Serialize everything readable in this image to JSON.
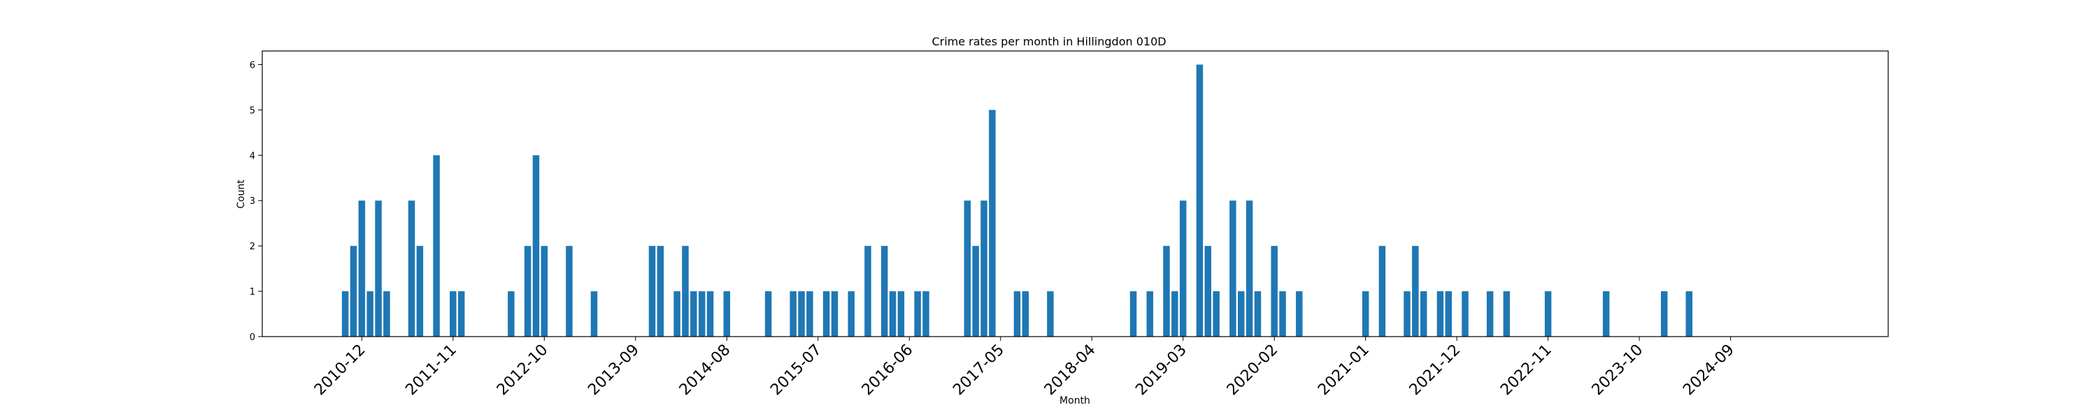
{
  "chart_data": {
    "type": "bar",
    "title": "Crime rates per month in Hillingdon 010D",
    "xlabel": "Month",
    "ylabel": "Count",
    "ylim": [
      0,
      6.3
    ],
    "yticks": [
      0,
      1,
      2,
      3,
      4,
      5,
      6
    ],
    "xlim": [
      "2009-12",
      "2026-04"
    ],
    "xticks": [
      "2010-12",
      "2011-11",
      "2012-10",
      "2013-09",
      "2014-08",
      "2015-07",
      "2016-06",
      "2017-05",
      "2018-04",
      "2019-03",
      "2020-02",
      "2021-01",
      "2021-12",
      "2022-11",
      "2023-10",
      "2024-09"
    ],
    "grid": false,
    "bar_color": "#1f77b4",
    "x": [
      "2010-10",
      "2010-11",
      "2010-12",
      "2011-01",
      "2011-02",
      "2011-03",
      "2011-06",
      "2011-07",
      "2011-09",
      "2011-11",
      "2011-12",
      "2012-06",
      "2012-08",
      "2012-09",
      "2012-10",
      "2013-01",
      "2013-04",
      "2013-11",
      "2013-12",
      "2014-02",
      "2014-03",
      "2014-04",
      "2014-05",
      "2014-06",
      "2014-08",
      "2015-01",
      "2015-04",
      "2015-05",
      "2015-06",
      "2015-08",
      "2015-09",
      "2015-11",
      "2016-01",
      "2016-03",
      "2016-04",
      "2016-05",
      "2016-07",
      "2016-08",
      "2017-01",
      "2017-02",
      "2017-03",
      "2017-04",
      "2017-07",
      "2017-08",
      "2017-11",
      "2018-09",
      "2018-11",
      "2019-01",
      "2019-02",
      "2019-03",
      "2019-05",
      "2019-06",
      "2019-07",
      "2019-09",
      "2019-10",
      "2019-11",
      "2019-12",
      "2020-02",
      "2020-03",
      "2020-05",
      "2021-01",
      "2021-03",
      "2021-06",
      "2021-07",
      "2021-08",
      "2021-10",
      "2021-11",
      "2022-01",
      "2022-04",
      "2022-06",
      "2022-11",
      "2023-06",
      "2024-01",
      "2024-04"
    ],
    "values": [
      1,
      2,
      3,
      1,
      3,
      1,
      3,
      2,
      4,
      1,
      1,
      1,
      2,
      4,
      2,
      2,
      1,
      2,
      2,
      1,
      2,
      1,
      1,
      1,
      1,
      1,
      1,
      1,
      1,
      1,
      1,
      1,
      2,
      2,
      1,
      1,
      1,
      1,
      3,
      2,
      3,
      5,
      1,
      1,
      1,
      1,
      1,
      2,
      1,
      3,
      6,
      2,
      1,
      3,
      1,
      3,
      1,
      2,
      1,
      1,
      1,
      2,
      1,
      2,
      1,
      1,
      1,
      1,
      1,
      1,
      1,
      1,
      1,
      1
    ]
  }
}
